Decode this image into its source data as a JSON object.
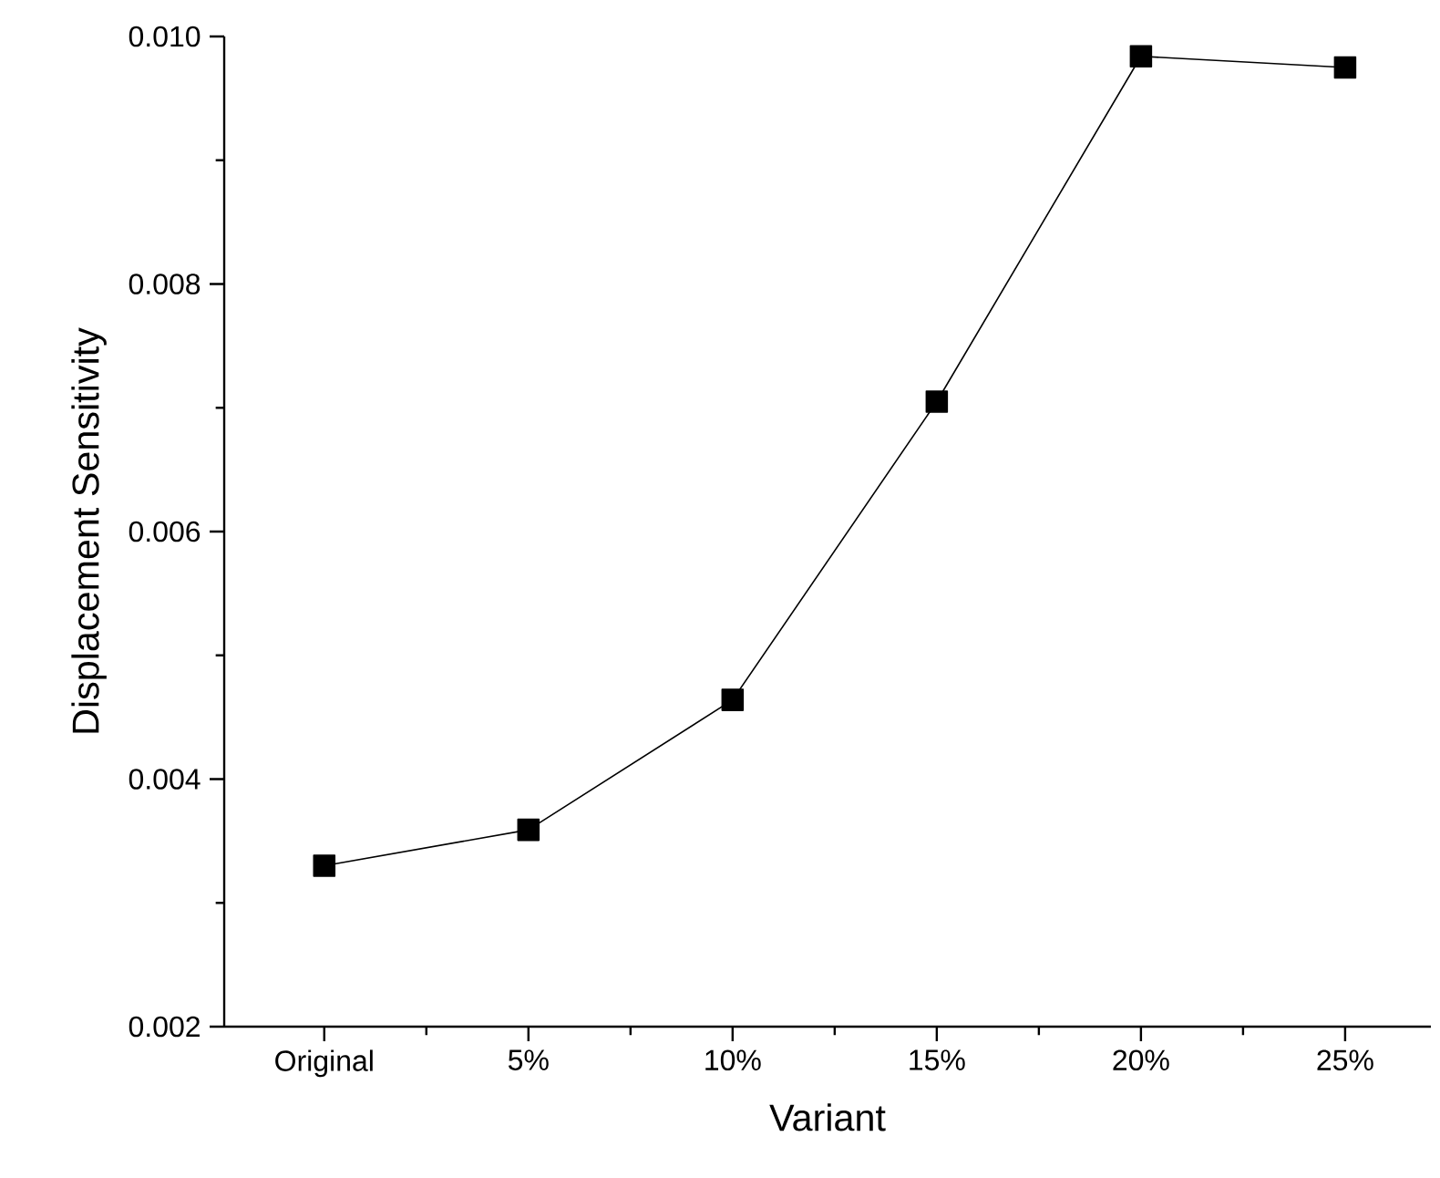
{
  "chart_data": {
    "type": "line",
    "xlabel": "Variant",
    "ylabel": "Displacement Sensitivity",
    "categories": [
      "Original",
      "5%",
      "10%",
      "15%",
      "20%",
      "25%"
    ],
    "values": [
      0.0033,
      0.00359,
      0.00464,
      0.00705,
      0.00984,
      0.00975
    ],
    "color": "#000000",
    "marker": "square",
    "line_style": "solid",
    "ylim": [
      0.002,
      0.01
    ],
    "yticks": [
      0.002,
      0.004,
      0.006,
      0.008,
      {
        "value": 0.01,
        "label": "0.010"
      }
    ]
  }
}
